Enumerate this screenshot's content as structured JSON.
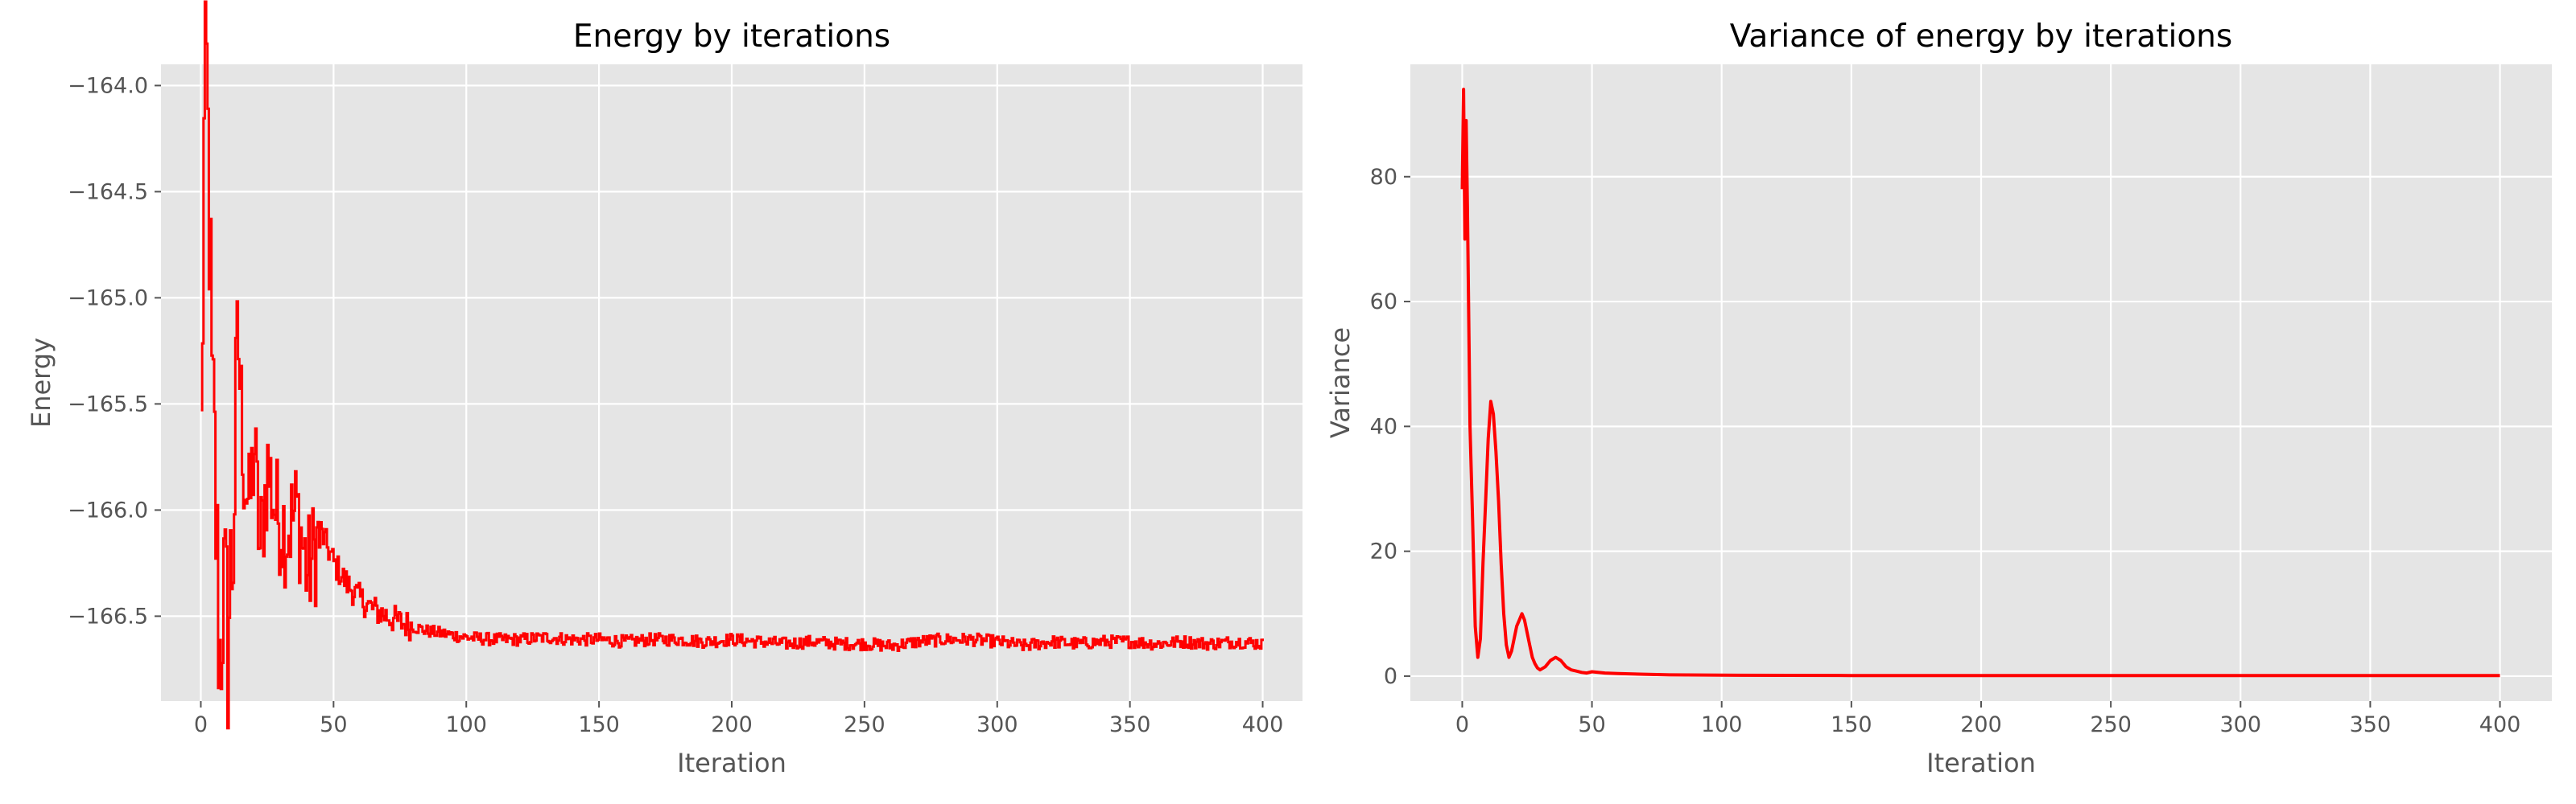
{
  "chart_data": [
    {
      "type": "line",
      "title": "Energy by iterations",
      "xlabel": "Iteration",
      "ylabel": "Energy",
      "xlim": [
        -15,
        415
      ],
      "ylim": [
        -166.9,
        -163.9
      ],
      "xticks": [
        0,
        50,
        100,
        150,
        200,
        250,
        300,
        350,
        400
      ],
      "yticks": [
        -164.0,
        -164.5,
        -165.0,
        -165.5,
        -166.0,
        -166.5
      ],
      "ytick_labels": [
        "−164.0",
        "−164.5",
        "−165.0",
        "−165.5",
        "−166.0",
        "−166.5"
      ],
      "grid": true,
      "legend": "none",
      "style": "noisy-step",
      "series": [
        {
          "color": "#ff0000",
          "x": [
            0,
            1,
            2,
            3,
            4,
            5,
            6,
            7,
            8,
            10,
            12,
            14,
            16,
            18,
            20,
            22,
            25,
            28,
            32,
            36,
            40,
            45,
            50,
            55,
            60,
            65,
            70,
            75,
            80,
            85,
            90,
            100,
            110,
            120,
            130,
            140,
            150,
            160,
            170,
            180,
            190,
            200,
            210,
            220,
            230,
            240,
            250,
            260,
            270,
            280,
            290,
            300,
            310,
            320,
            330,
            340,
            350,
            360,
            370,
            380,
            390,
            400
          ],
          "values": [
            -165.7,
            -164.3,
            -164.0,
            -164.6,
            -165.5,
            -165.8,
            -166.3,
            -166.7,
            -166.4,
            -166.6,
            -166.1,
            -165.2,
            -165.8,
            -166.0,
            -165.7,
            -166.2,
            -165.8,
            -166.0,
            -166.1,
            -166.0,
            -166.3,
            -166.1,
            -166.25,
            -166.35,
            -166.42,
            -166.47,
            -166.5,
            -166.53,
            -166.55,
            -166.57,
            -166.58,
            -166.6,
            -166.61,
            -166.61,
            -166.6,
            -166.61,
            -166.61,
            -166.62,
            -166.61,
            -166.61,
            -166.62,
            -166.61,
            -166.62,
            -166.63,
            -166.62,
            -166.63,
            -166.63,
            -166.64,
            -166.62,
            -166.61,
            -166.61,
            -166.62,
            -166.64,
            -166.62,
            -166.63,
            -166.62,
            -166.62,
            -166.63,
            -166.62,
            -166.63,
            -166.62,
            -166.63
          ]
        }
      ]
    },
    {
      "type": "line",
      "title": "Variance of energy by iterations",
      "xlabel": "Iteration",
      "ylabel": "Variance",
      "xlim": [
        -20,
        420
      ],
      "ylim": [
        -4,
        98
      ],
      "xticks": [
        0,
        50,
        100,
        150,
        200,
        250,
        300,
        350,
        400
      ],
      "yticks": [
        0,
        20,
        40,
        60,
        80
      ],
      "ytick_labels": [
        "0",
        "20",
        "40",
        "60",
        "80"
      ],
      "grid": true,
      "legend": "none",
      "style": "smooth",
      "series": [
        {
          "color": "#ff0000",
          "x": [
            0,
            0.5,
            1,
            1.5,
            2,
            3,
            4,
            5,
            6,
            7,
            8,
            9,
            10,
            11,
            12,
            13,
            14,
            15,
            16,
            17,
            18,
            19,
            20,
            21,
            22,
            23,
            24,
            25,
            26,
            27,
            28,
            29,
            30,
            32,
            34,
            36,
            38,
            40,
            42,
            44,
            46,
            48,
            50,
            55,
            60,
            70,
            80,
            100,
            150,
            200,
            300,
            400
          ],
          "values": [
            78,
            94,
            70,
            89,
            75,
            40,
            25,
            8,
            3,
            6,
            18,
            28,
            38,
            44,
            42,
            36,
            28,
            18,
            10,
            5,
            3,
            4,
            6,
            8,
            9,
            10,
            9,
            7,
            5,
            3,
            2,
            1.3,
            1,
            1.5,
            2.5,
            3,
            2.5,
            1.5,
            1,
            0.8,
            0.6,
            0.5,
            0.7,
            0.5,
            0.4,
            0.3,
            0.2,
            0.15,
            0.1,
            0.1,
            0.1,
            0.1
          ]
        }
      ]
    }
  ]
}
